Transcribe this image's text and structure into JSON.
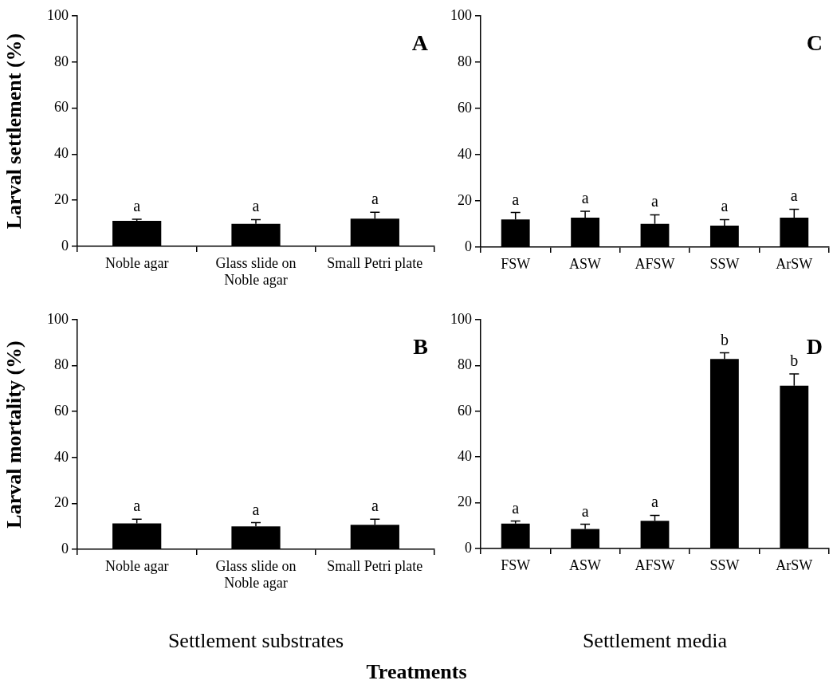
{
  "chart_data": [
    {
      "type": "bar",
      "title": "A",
      "ylabel": "Larval settlement (%)",
      "categories": [
        "Noble agar",
        "Glass slide on Noble agar",
        "Small Petri plate"
      ],
      "values": [
        11.1,
        9.8,
        12.0
      ],
      "errors": [
        [
          11.1,
          11.8
        ],
        [
          9.8,
          11.6
        ],
        [
          12.0,
          14.8
        ]
      ],
      "color": "#000000",
      "ylim": [
        0,
        100
      ],
      "yticks": [
        0,
        20,
        40,
        60,
        80,
        100
      ],
      "grid": false,
      "legend": false,
      "annotations": [
        {
          "text": "a",
          "x": "Noble agar",
          "y": 11.8
        },
        {
          "text": "a",
          "x": "Glass slide on Noble agar",
          "y": 11.6
        },
        {
          "text": "a",
          "x": "Small Petri plate",
          "y": 14.8
        }
      ]
    },
    {
      "type": "bar",
      "title": "C",
      "categories": [
        "FSW",
        "ASW",
        "AFSW",
        "SSW",
        "ArSW"
      ],
      "values": [
        12.0,
        12.8,
        10.1,
        9.3,
        12.8
      ],
      "errors": [
        [
          12.0,
          15.0
        ],
        [
          12.8,
          15.5
        ],
        [
          10.1,
          14.0
        ],
        [
          9.3,
          11.9
        ],
        [
          12.8,
          16.4
        ]
      ],
      "color": "#000000",
      "ylim": [
        0,
        100
      ],
      "yticks": [
        0,
        20,
        40,
        60,
        80,
        100
      ],
      "grid": false,
      "legend": false,
      "annotations": [
        {
          "text": "a",
          "x": "FSW",
          "y": 15.0
        },
        {
          "text": "a",
          "x": "ASW",
          "y": 15.5
        },
        {
          "text": "a",
          "x": "AFSW",
          "y": 14.0
        },
        {
          "text": "a",
          "x": "SSW",
          "y": 11.9
        },
        {
          "text": "a",
          "x": "ArSW",
          "y": 16.4
        }
      ]
    },
    {
      "type": "bar",
      "title": "B",
      "ylabel": "Larval mortality (%)",
      "xlabel": "Settlement substrates",
      "categories": [
        "Noble agar",
        "Glass slide on Noble agar",
        "Small Petri plate"
      ],
      "values": [
        11.3,
        10.0,
        10.7
      ],
      "errors": [
        [
          11.3,
          13.1
        ],
        [
          10.0,
          11.6
        ],
        [
          10.7,
          13.1
        ]
      ],
      "color": "#000000",
      "ylim": [
        0,
        100
      ],
      "yticks": [
        0,
        20,
        40,
        60,
        80,
        100
      ],
      "grid": false,
      "legend": false,
      "annotations": [
        {
          "text": "a",
          "x": "Noble agar",
          "y": 13.1
        },
        {
          "text": "a",
          "x": "Glass slide on Noble agar",
          "y": 11.6
        },
        {
          "text": "a",
          "x": "Small Petri plate",
          "y": 13.1
        }
      ]
    },
    {
      "type": "bar",
      "title": "D",
      "xlabel": "Settlement media",
      "categories": [
        "FSW",
        "ASW",
        "AFSW",
        "SSW",
        "ArSW"
      ],
      "values": [
        10.9,
        8.5,
        12.1,
        82.8,
        71.2
      ],
      "errors": [
        [
          10.9,
          12.0
        ],
        [
          8.5,
          10.6
        ],
        [
          12.1,
          14.5
        ],
        [
          82.8,
          85.5
        ],
        [
          71.2,
          76.3
        ]
      ],
      "color": "#000000",
      "ylim": [
        0,
        100
      ],
      "yticks": [
        0,
        20,
        40,
        60,
        80,
        100
      ],
      "grid": false,
      "legend": false,
      "annotations": [
        {
          "text": "a",
          "x": "FSW",
          "y": 12.0
        },
        {
          "text": "a",
          "x": "ASW",
          "y": 10.6
        },
        {
          "text": "a",
          "x": "AFSW",
          "y": 14.5
        },
        {
          "text": "b",
          "x": "SSW",
          "y": 85.5
        },
        {
          "text": "b",
          "x": "ArSW",
          "y": 76.3
        },
        "Treatments"
      ]
    }
  ]
}
